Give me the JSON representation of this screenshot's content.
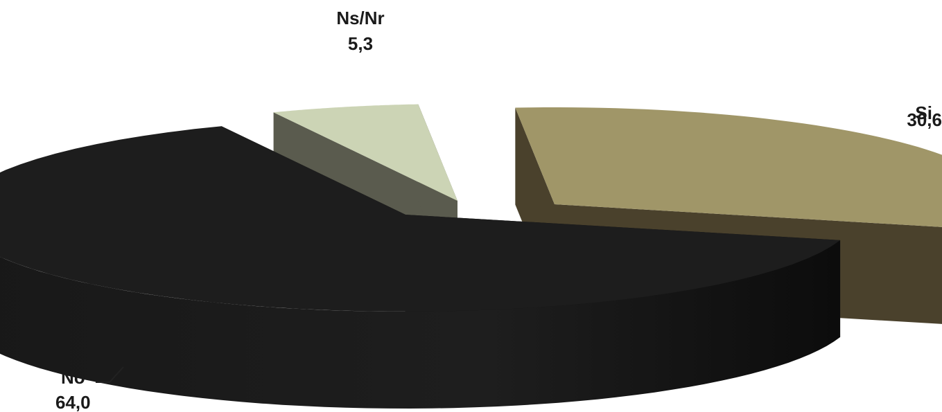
{
  "chart_data": {
    "type": "pie",
    "categories": [
      "Si",
      "No",
      "Ns/Nr"
    ],
    "values": [
      30.6,
      64.0,
      5.3
    ],
    "value_labels": [
      "30,6",
      "64,0",
      "5,3"
    ],
    "colors": {
      "Si": {
        "top": "#a09668",
        "side": "#4a412c"
      },
      "No": {
        "top": "#1d1d1d",
        "side": "#141414"
      },
      "Ns/Nr": {
        "top": "#ccd4b5",
        "side": "#5a5b4e"
      }
    },
    "exploded": true,
    "three_d": true,
    "title": "",
    "legend": "none"
  }
}
